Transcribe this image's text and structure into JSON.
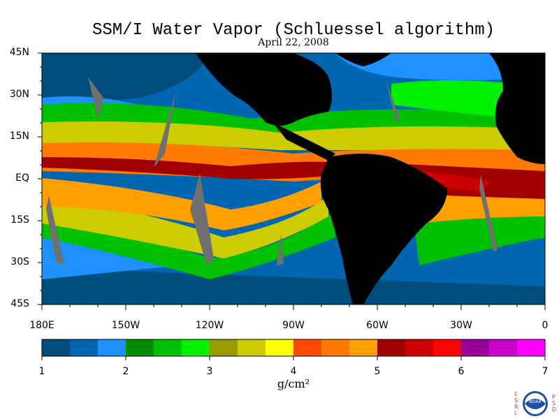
{
  "title": "SSM/I Water Vapor (Schluessel algorithm)",
  "date": "April 22, 2008",
  "lat_labels": [
    "45N",
    "30N",
    "15N",
    "EQ",
    "15S",
    "30S",
    "45S"
  ],
  "lat_values": [
    45,
    30,
    15,
    0,
    -15,
    -30,
    -45
  ],
  "lon_labels": [
    "180E",
    "150W",
    "120W",
    "90W",
    "60W",
    "30W",
    "0"
  ],
  "lon_values": [
    -180,
    -150,
    -120,
    -90,
    -60,
    -30,
    0
  ],
  "colorbar": {
    "ticks": [
      "1",
      "2",
      "3",
      "4",
      "5",
      "6",
      "7"
    ],
    "min": 1,
    "max": 7,
    "units": "g/cm²",
    "colors": [
      "#004c7a",
      "#0066b0",
      "#1e90ff",
      "#008c00",
      "#00c000",
      "#00f000",
      "#9a9a00",
      "#cccc00",
      "#ffff00",
      "#ff4800",
      "#ff7a00",
      "#ffa000",
      "#a00000",
      "#cc0000",
      "#ff0000",
      "#990099",
      "#cc00cc",
      "#ff00ff"
    ]
  },
  "land_color": "#000000",
  "missing_color": "#707070",
  "logo": {
    "left_text": "ESRL",
    "right_text": "PSD",
    "center_text": "NOAA"
  }
}
